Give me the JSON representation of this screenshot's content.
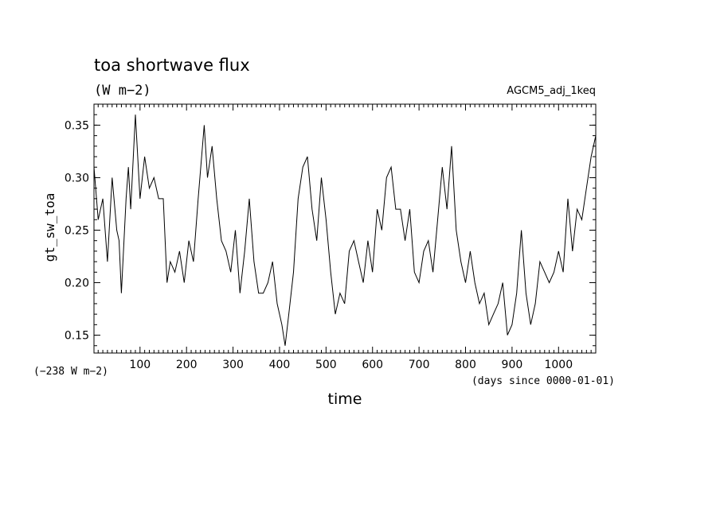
{
  "chart_data": {
    "type": "line",
    "title": "toa shortwave flux",
    "units": "(W m−2)",
    "run_label": "AGCM5_adj_1keq",
    "ylabel": "gt_sw_toa",
    "xlabel": "time",
    "x_units_note": "(days since 0000-01-01)",
    "y_offset_note": "(−238 W m−2)",
    "xlim": [
      1,
      1080
    ],
    "ylim": [
      0.133,
      0.37
    ],
    "xticks": [
      100,
      200,
      300,
      400,
      500,
      600,
      700,
      800,
      900,
      1000
    ],
    "yticks": [
      0.15,
      0.2,
      0.25,
      0.3,
      0.35
    ],
    "ytick_labels": [
      "0.15",
      "0.20",
      "0.25",
      "0.30",
      "0.35"
    ],
    "grid": false,
    "color": "#000000",
    "series": [
      {
        "x": [
          1,
          10,
          20,
          30,
          40,
          50,
          55,
          60,
          70,
          75,
          80,
          90,
          100,
          110,
          120,
          130,
          140,
          150,
          158,
          165,
          175,
          185,
          195,
          205,
          215,
          225,
          238,
          245,
          255,
          265,
          275,
          285,
          295,
          305,
          315,
          325,
          335,
          345,
          355,
          365,
          375,
          385,
          395,
          405,
          412,
          420,
          430,
          440,
          450,
          460,
          470,
          480,
          490,
          500,
          510,
          520,
          530,
          540,
          550,
          560,
          570,
          580,
          590,
          600,
          610,
          620,
          630,
          640,
          650,
          660,
          670,
          680,
          690,
          700,
          710,
          720,
          730,
          740,
          750,
          760,
          770,
          780,
          790,
          800,
          810,
          820,
          830,
          840,
          850,
          860,
          870,
          880,
          890,
          900,
          910,
          920,
          930,
          940,
          950,
          960,
          970,
          980,
          990,
          1000,
          1010,
          1020,
          1030,
          1040,
          1050,
          1060,
          1070,
          1080
        ],
        "values": [
          0.31,
          0.26,
          0.28,
          0.22,
          0.3,
          0.25,
          0.24,
          0.19,
          0.28,
          0.31,
          0.27,
          0.36,
          0.28,
          0.32,
          0.29,
          0.3,
          0.28,
          0.28,
          0.2,
          0.22,
          0.21,
          0.23,
          0.2,
          0.24,
          0.22,
          0.28,
          0.35,
          0.3,
          0.33,
          0.28,
          0.24,
          0.23,
          0.21,
          0.25,
          0.19,
          0.23,
          0.28,
          0.22,
          0.19,
          0.19,
          0.2,
          0.22,
          0.18,
          0.16,
          0.14,
          0.17,
          0.21,
          0.28,
          0.31,
          0.32,
          0.27,
          0.24,
          0.3,
          0.26,
          0.21,
          0.17,
          0.19,
          0.18,
          0.23,
          0.24,
          0.22,
          0.2,
          0.24,
          0.21,
          0.27,
          0.25,
          0.3,
          0.31,
          0.27,
          0.27,
          0.24,
          0.27,
          0.21,
          0.2,
          0.23,
          0.24,
          0.21,
          0.26,
          0.31,
          0.27,
          0.33,
          0.25,
          0.22,
          0.2,
          0.23,
          0.2,
          0.18,
          0.19,
          0.16,
          0.17,
          0.18,
          0.2,
          0.15,
          0.16,
          0.19,
          0.25,
          0.19,
          0.16,
          0.18,
          0.22,
          0.21,
          0.2,
          0.21,
          0.23,
          0.21,
          0.28,
          0.23,
          0.27,
          0.26,
          0.29,
          0.32,
          0.34
        ]
      }
    ]
  }
}
